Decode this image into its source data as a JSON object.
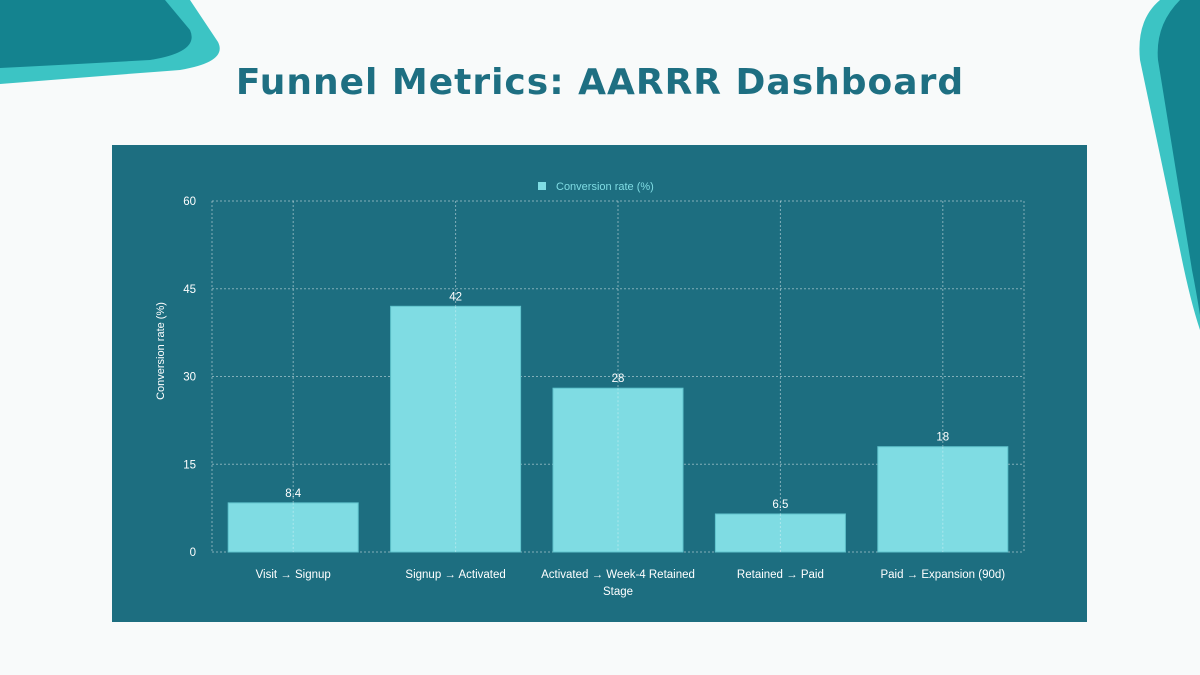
{
  "page": {
    "title": "Funnel Metrics: AARRR Dashboard"
  },
  "colors": {
    "accent_dark": "#14838f",
    "accent_light": "#3cc4c4",
    "panel_bg": "#1d6e80",
    "bar": "#7fdce3",
    "title": "#1e6f82"
  },
  "chart_data": {
    "type": "bar",
    "title": "",
    "categories": [
      "Visit → Signup",
      "Signup → Activated",
      "Activated → Week-4 Retained",
      "Retained → Paid",
      "Paid → Expansion (90d)"
    ],
    "series": [
      {
        "name": "Conversion rate (%)",
        "values": [
          8.4,
          42,
          28,
          6.5,
          18
        ]
      }
    ],
    "data_labels": [
      "8.4",
      "42",
      "28",
      "6.5",
      "18"
    ],
    "xlabel": "Stage",
    "ylabel": "Conversion rate (%)",
    "ylim": [
      0,
      60
    ],
    "yticks": [
      0,
      15,
      30,
      45,
      60
    ],
    "grid": true,
    "legend": "top-center"
  }
}
